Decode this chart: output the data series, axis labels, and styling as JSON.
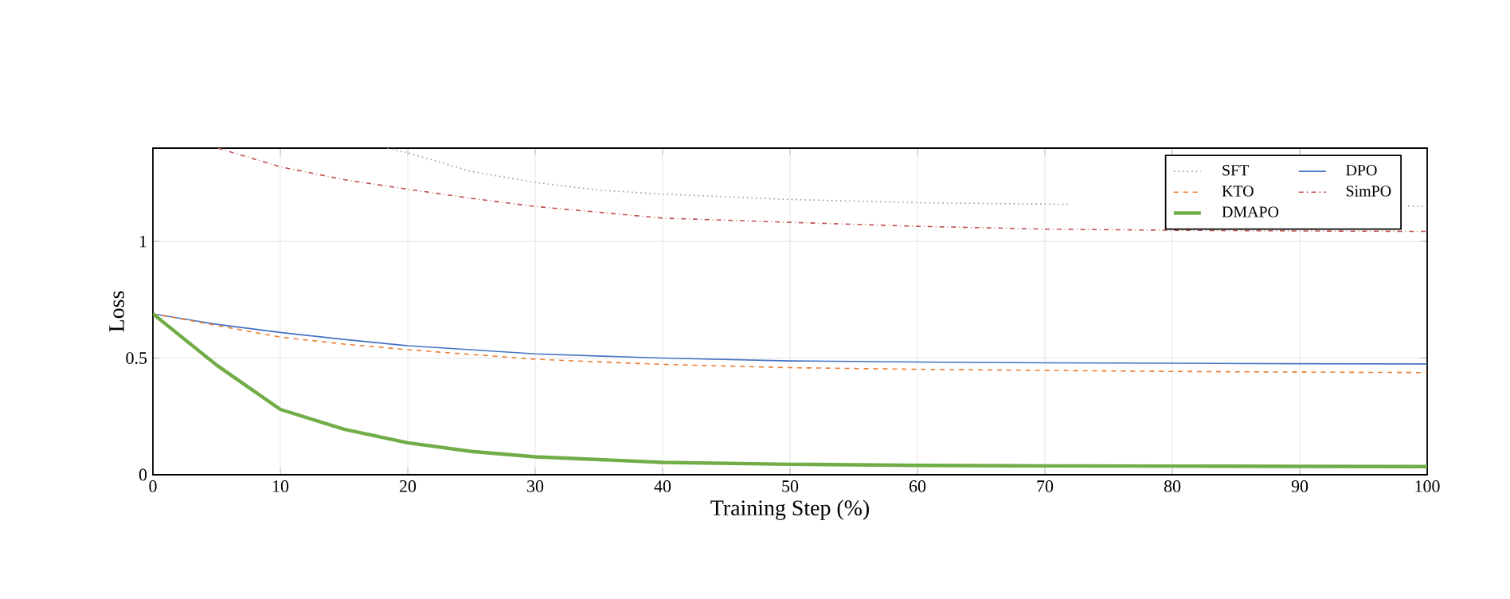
{
  "chart_data": {
    "type": "line",
    "xlabel": "Training Step (%)",
    "ylabel": "Loss",
    "xlim": [
      0,
      100
    ],
    "ylim": [
      0,
      1.4
    ],
    "xticks": [
      0,
      10,
      20,
      30,
      40,
      50,
      60,
      70,
      80,
      90,
      100
    ],
    "yticks": [
      0,
      0.5,
      1
    ],
    "grid": true,
    "legend": "top right",
    "marker": "none",
    "series": [
      {
        "name": "SFT",
        "color": "#999999",
        "line_style": "dotted",
        "x": [
          18.4,
          20,
          25,
          30,
          35,
          40,
          50,
          60,
          70,
          72,
          80,
          90,
          98.5,
          100
        ],
        "values": [
          1.4,
          1.38,
          1.3,
          1.253,
          1.22,
          1.203,
          1.18,
          1.166,
          1.16,
          1.159,
          null,
          null,
          1.151,
          1.15
        ]
      },
      {
        "name": "DPO",
        "color": "#4472c4",
        "line_style": "solid",
        "x": [
          0,
          5,
          10,
          15,
          20,
          30,
          40,
          50,
          60,
          70,
          80,
          90,
          100
        ],
        "values": [
          0.69,
          0.645,
          0.61,
          0.58,
          0.553,
          0.518,
          0.5,
          0.488,
          0.483,
          0.48,
          0.478,
          0.476,
          0.475
        ]
      },
      {
        "name": "KTO",
        "color": "#ed7d31",
        "line_style": "dashed",
        "x": [
          0,
          5,
          10,
          15,
          20,
          30,
          40,
          50,
          60,
          70,
          80,
          90,
          100
        ],
        "values": [
          0.69,
          0.64,
          0.59,
          0.56,
          0.536,
          0.495,
          0.473,
          0.459,
          0.452,
          0.447,
          0.443,
          0.44,
          0.438
        ]
      },
      {
        "name": "SimPO",
        "color": "#c0504d",
        "line_style": "dashdotted",
        "x": [
          5.1,
          10,
          15,
          20,
          25,
          30,
          40,
          50,
          60,
          70,
          80,
          90,
          100
        ],
        "values": [
          1.4,
          1.32,
          1.265,
          1.224,
          1.185,
          1.15,
          1.1,
          1.082,
          1.065,
          1.053,
          1.048,
          1.045,
          1.043
        ]
      },
      {
        "name": "DMAPO",
        "color": "#70ad47",
        "line_style": "solid",
        "x": [
          0,
          5,
          10,
          15,
          20,
          25,
          30,
          40,
          50,
          60,
          70,
          80,
          90,
          100
        ],
        "values": [
          0.69,
          0.47,
          0.28,
          0.195,
          0.137,
          0.1,
          0.077,
          0.053,
          0.045,
          0.04,
          0.038,
          0.037,
          0.036,
          0.035
        ]
      }
    ]
  }
}
